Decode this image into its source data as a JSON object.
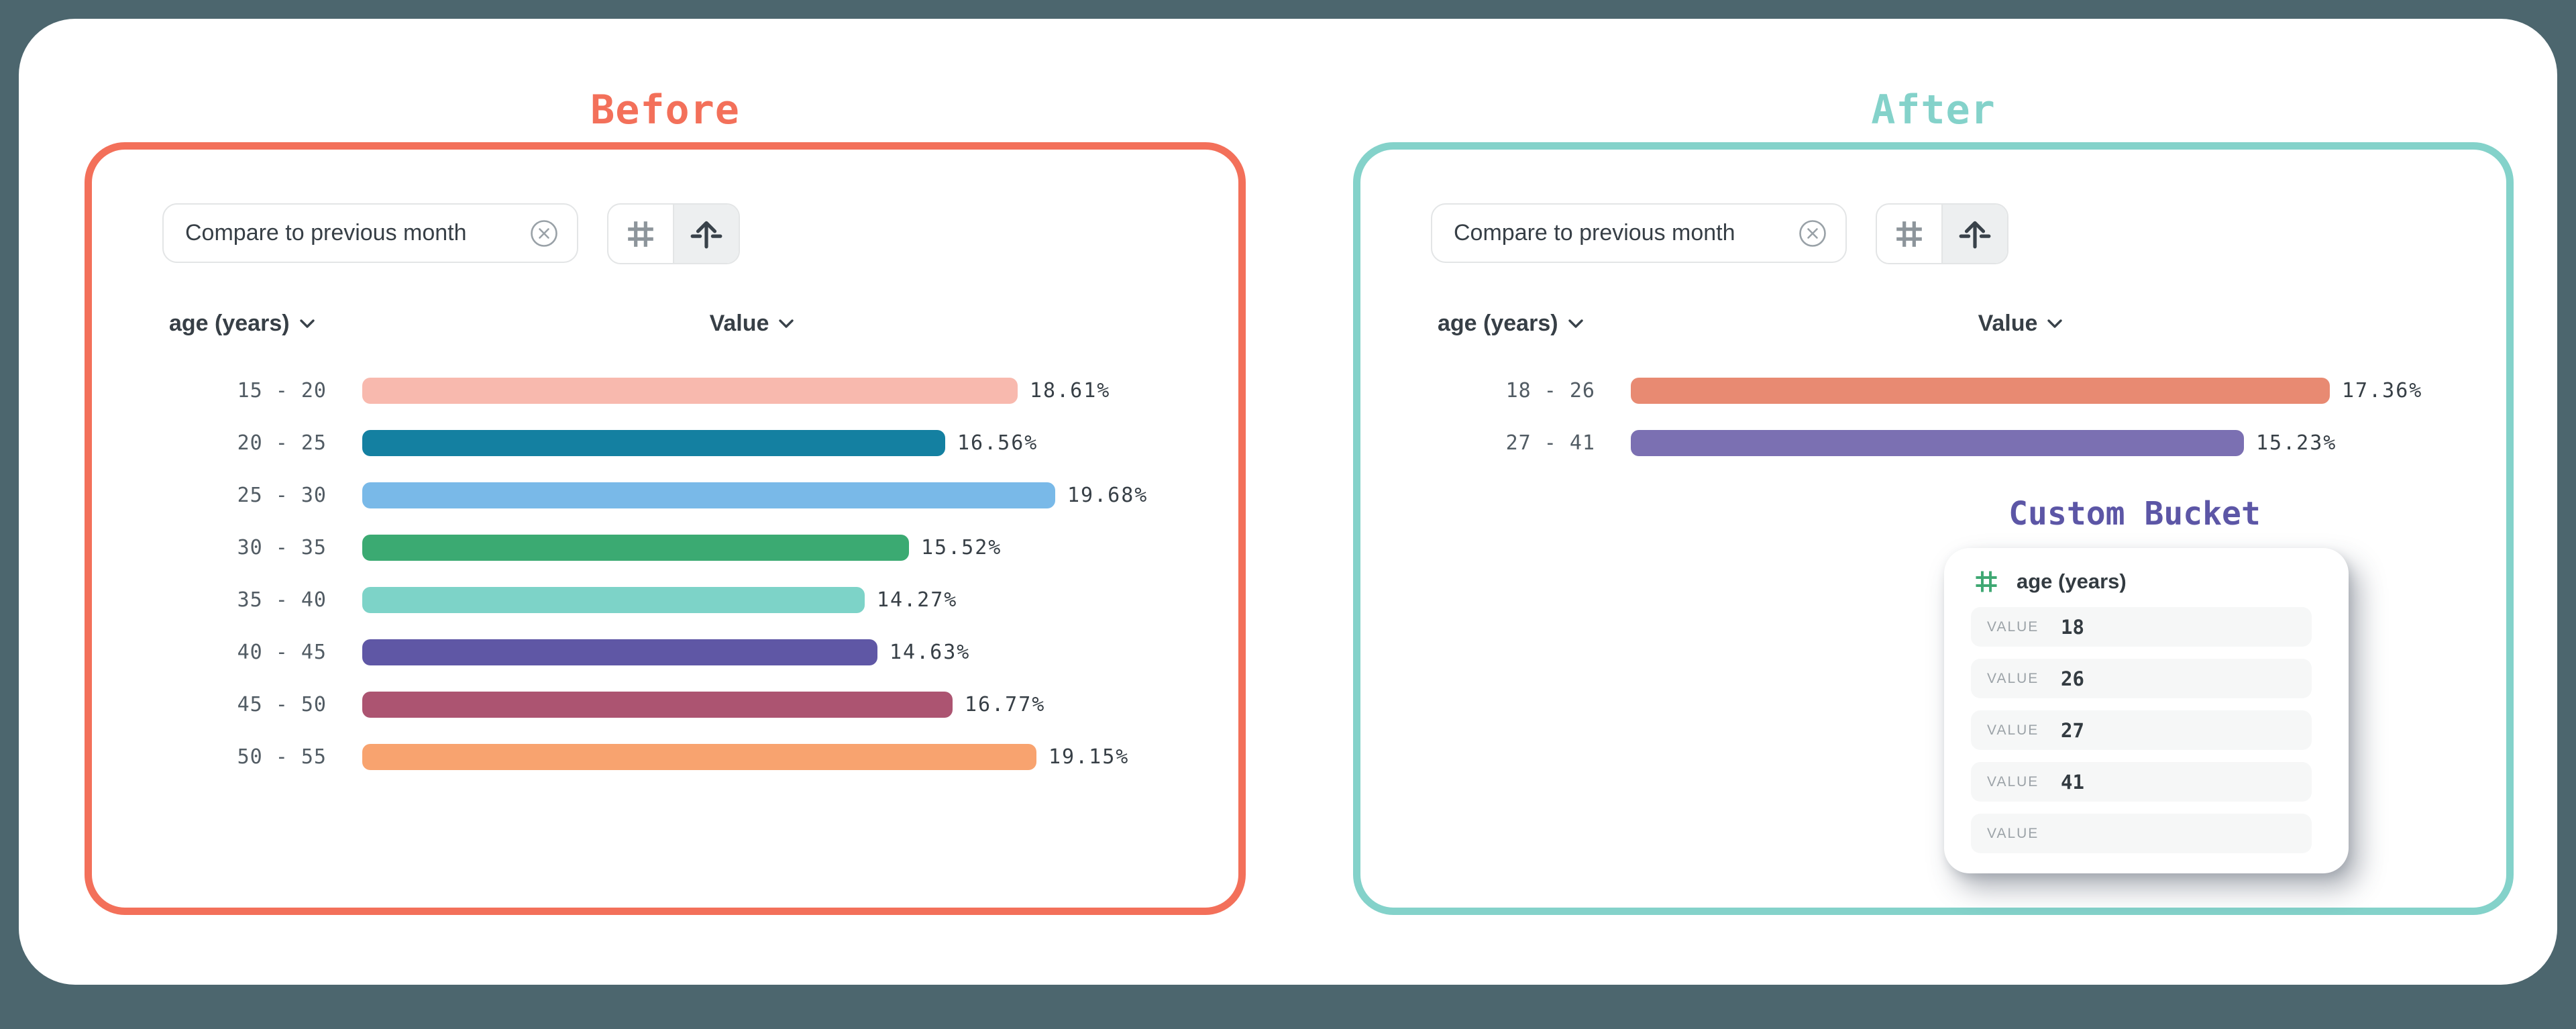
{
  "background_color": "#4C666E",
  "panels": [
    {
      "id": "before",
      "title": "Before",
      "accent": "#F3705A",
      "filter_chip": {
        "label": "Compare to previous month",
        "remove_icon": "circle-x-icon"
      },
      "toolbar": {
        "buttons": [
          {
            "icon": "hash-icon",
            "selected": false
          },
          {
            "icon": "move-up-icon",
            "selected": true
          }
        ]
      },
      "columns": {
        "dimension": "age (years)",
        "value": "Value"
      },
      "rows": [
        {
          "label": "15 - 20",
          "percent": 18.61,
          "value_label": "18.61%",
          "color": "#F8B9AE"
        },
        {
          "label": "20 - 25",
          "percent": 16.56,
          "value_label": "16.56%",
          "color": "#1480A1"
        },
        {
          "label": "25 - 30",
          "percent": 19.68,
          "value_label": "19.68%",
          "color": "#79B9E8"
        },
        {
          "label": "30 - 35",
          "percent": 15.52,
          "value_label": "15.52%",
          "color": "#3BAA72"
        },
        {
          "label": "35 - 40",
          "percent": 14.27,
          "value_label": "14.27%",
          "color": "#7DD3C8"
        },
        {
          "label": "40 - 45",
          "percent": 14.63,
          "value_label": "14.63%",
          "color": "#5F57A5"
        },
        {
          "label": "45 - 50",
          "percent": 16.77,
          "value_label": "16.77%",
          "color": "#AC5471"
        },
        {
          "label": "50 - 55",
          "percent": 19.15,
          "value_label": "19.15%",
          "color": "#F8A36F"
        }
      ]
    },
    {
      "id": "after",
      "title": "After",
      "accent": "#84D2CA",
      "filter_chip": {
        "label": "Compare to previous month",
        "remove_icon": "circle-x-icon"
      },
      "toolbar": {
        "buttons": [
          {
            "icon": "hash-icon",
            "selected": false
          },
          {
            "icon": "move-up-icon",
            "selected": true
          }
        ]
      },
      "columns": {
        "dimension": "age (years)",
        "value": "Value"
      },
      "rows": [
        {
          "label": "18 - 26",
          "percent": 17.36,
          "value_label": "17.36%",
          "color": "#E88A72"
        },
        {
          "label": "27 - 41",
          "percent": 15.23,
          "value_label": "15.23%",
          "color": "#7B70B2"
        }
      ],
      "custom_bucket": {
        "title": "Custom Bucket",
        "title_color": "#5C56A6",
        "property": "age (years)",
        "property_icon": "number-hash-icon",
        "property_icon_color": "#3FA873",
        "fields": [
          {
            "label": "VALUE",
            "value": "18"
          },
          {
            "label": "VALUE",
            "value": "26"
          },
          {
            "label": "VALUE",
            "value": "27"
          },
          {
            "label": "VALUE",
            "value": "41"
          },
          {
            "label": "VALUE",
            "value": ""
          }
        ]
      }
    }
  ],
  "chart_data": [
    {
      "type": "bar",
      "orientation": "horizontal",
      "title": "Before",
      "xlabel": "Value",
      "ylabel": "age (years)",
      "categories": [
        "15 - 20",
        "20 - 25",
        "25 - 30",
        "30 - 35",
        "35 - 40",
        "40 - 45",
        "45 - 50",
        "50 - 55"
      ],
      "values": [
        18.61,
        16.56,
        19.68,
        15.52,
        14.27,
        14.63,
        16.77,
        19.15
      ],
      "unit": "%",
      "colors": [
        "#F8B9AE",
        "#1480A1",
        "#79B9E8",
        "#3BAA72",
        "#7DD3C8",
        "#5F57A5",
        "#AC5471",
        "#F8A36F"
      ]
    },
    {
      "type": "bar",
      "orientation": "horizontal",
      "title": "After",
      "xlabel": "Value",
      "ylabel": "age (years)",
      "categories": [
        "18 - 26",
        "27 - 41"
      ],
      "values": [
        17.36,
        15.23
      ],
      "unit": "%",
      "colors": [
        "#E88A72",
        "#7B70B2"
      ]
    }
  ]
}
